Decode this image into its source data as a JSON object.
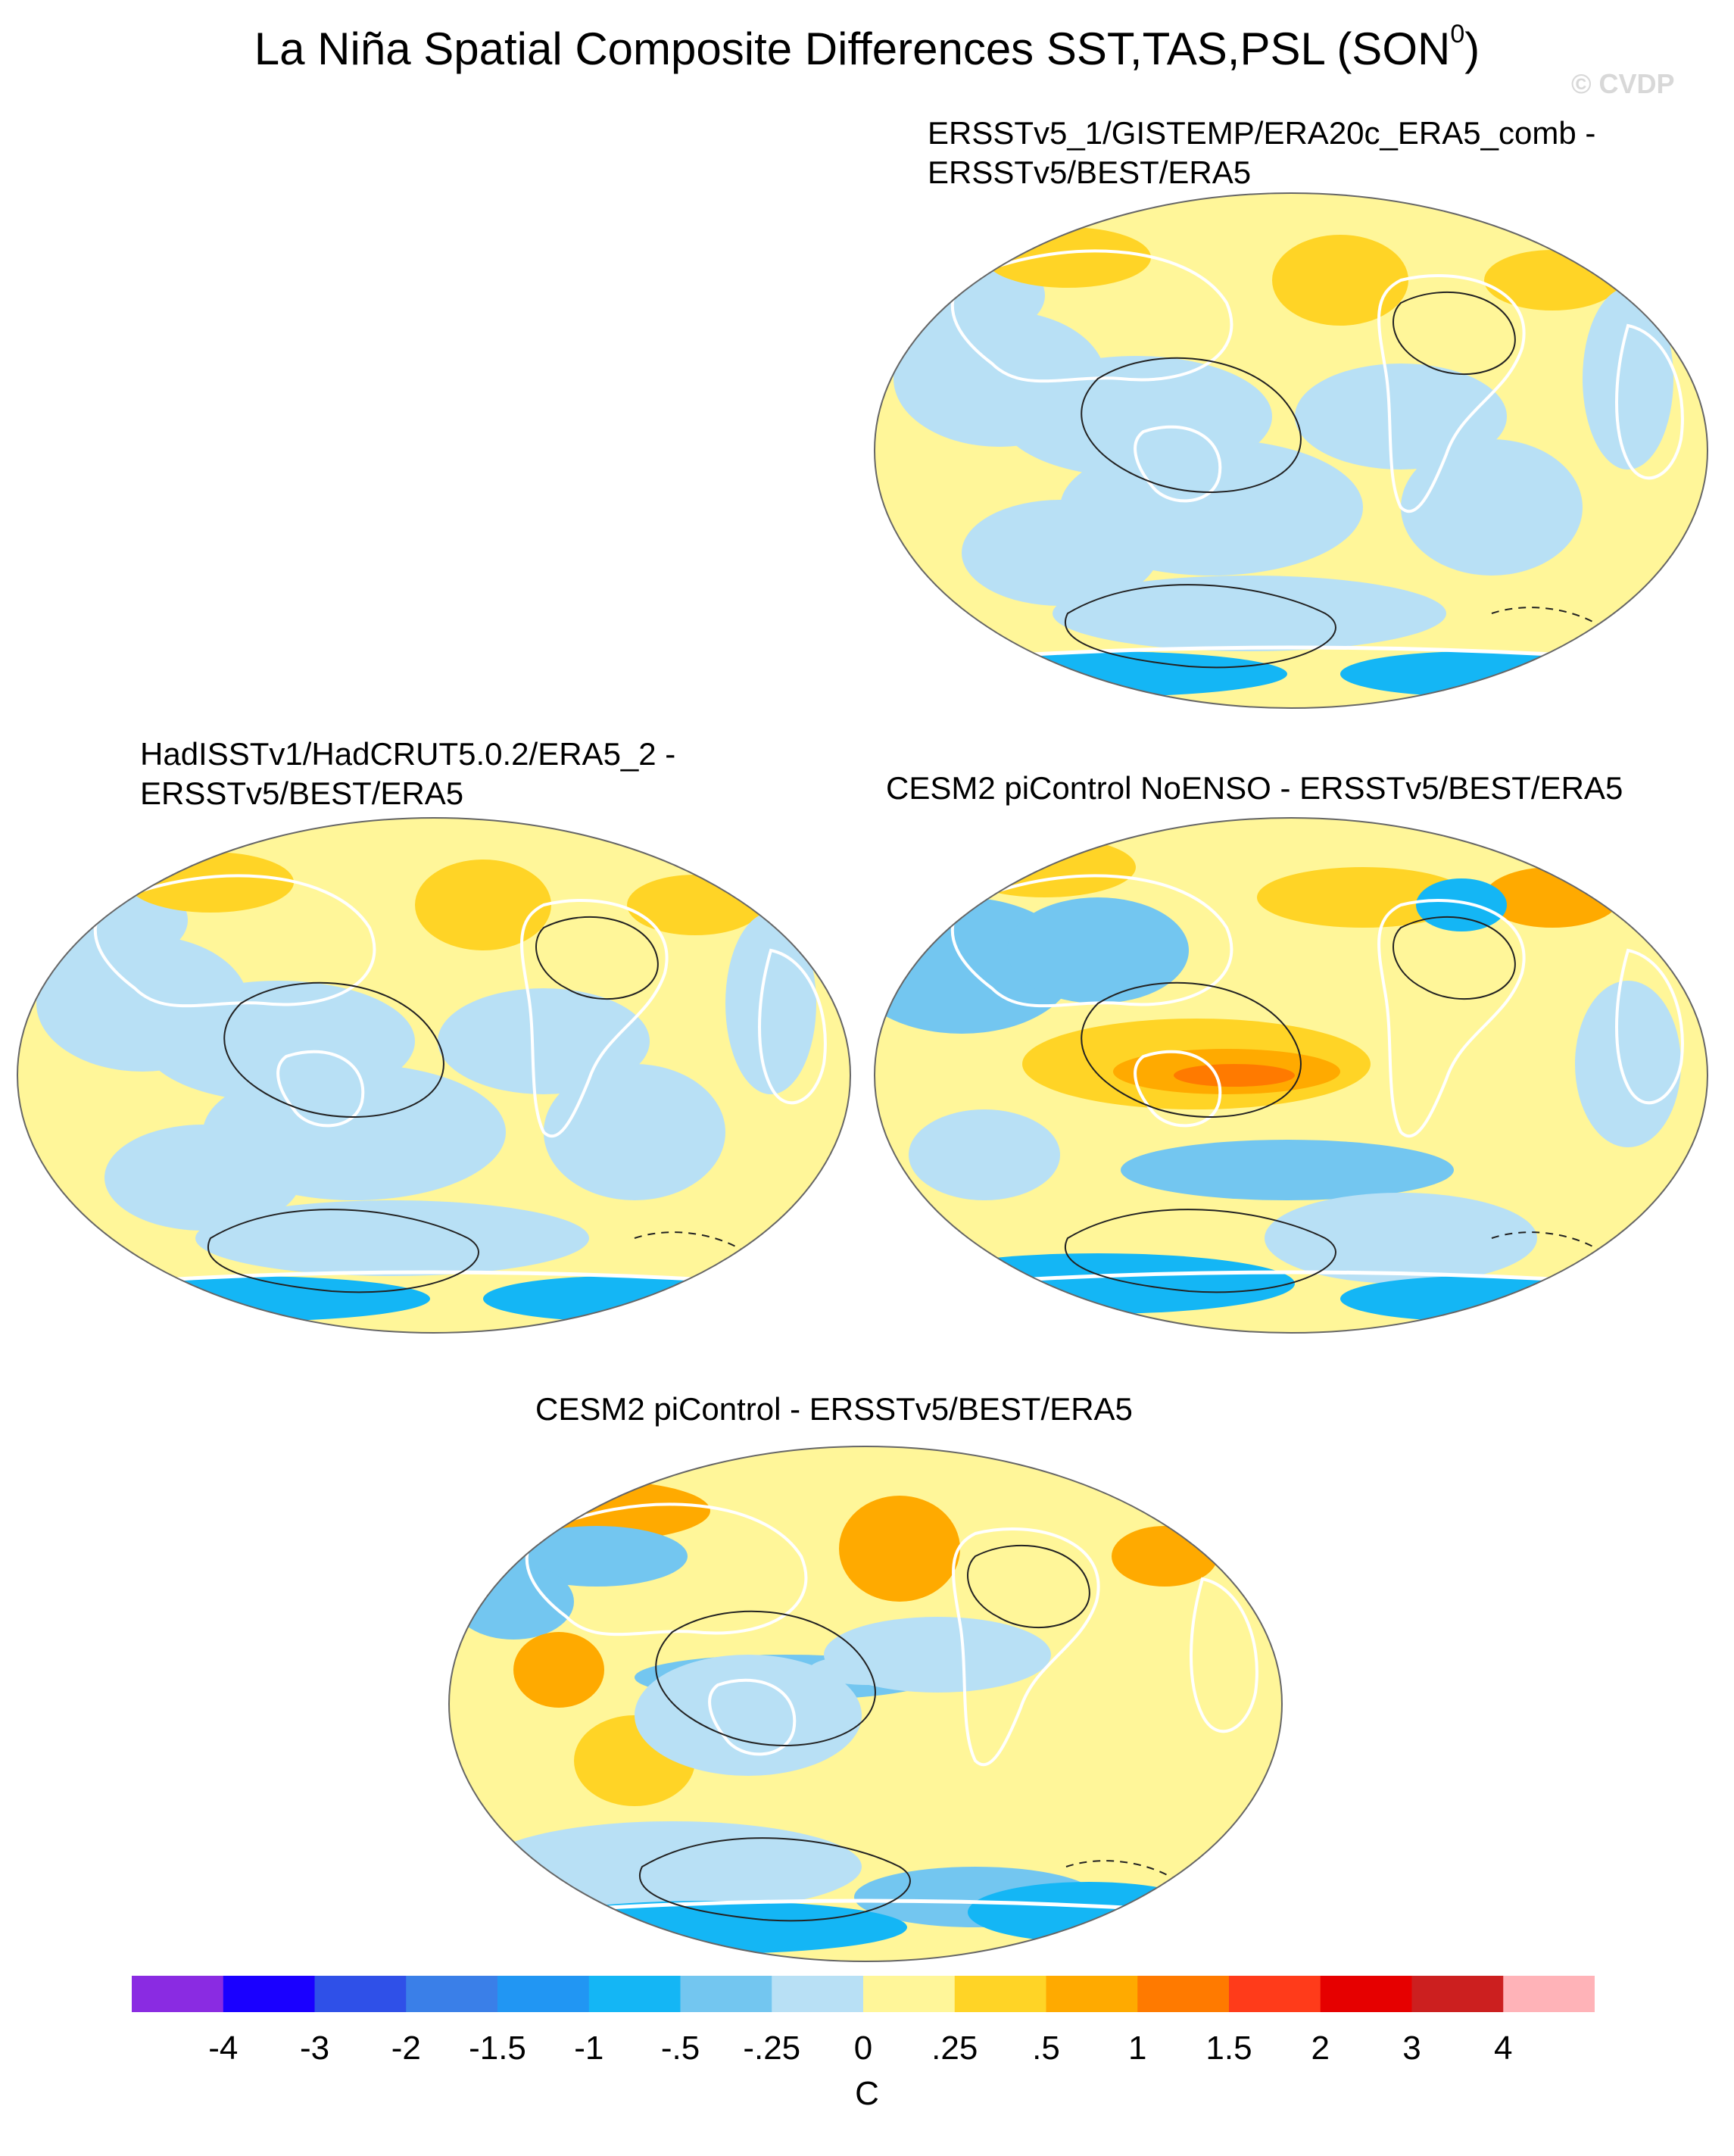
{
  "title": {
    "main": "La Niña Spatial Composite Differences SST,TAS,PSL (SON",
    "superscript": "0",
    "close": ")"
  },
  "watermark": "© CVDP",
  "panels": [
    {
      "id": "panel-1",
      "line1": "ERSSTv5_1/GISTEMP/ERA20c_ERA5_comb -",
      "line2": "ERSSTv5/BEST/ERA5",
      "pattern": "weak"
    },
    {
      "id": "panel-2",
      "line1": "HadISSTv1/HadCRUT5.0.2/ERA5_2 -",
      "line2": "ERSSTv5/BEST/ERA5",
      "pattern": "weak"
    },
    {
      "id": "panel-3",
      "line1": "CESM2 piControl NoENSO - ERSSTv5/BEST/ERA5",
      "line2": "",
      "pattern": "warm-equator"
    },
    {
      "id": "panel-4",
      "line1": "CESM2 piControl - ERSSTv5/BEST/ERA5",
      "line2": "",
      "pattern": "mixed"
    }
  ],
  "colorbar": {
    "unit": "C",
    "colors": [
      "#8a2be2",
      "#1a00ff",
      "#2f50e8",
      "#3a7fe8",
      "#2196f3",
      "#14b6f5",
      "#73c6f0",
      "#b8e0f5",
      "#fff699",
      "#ffd426",
      "#ffaa00",
      "#ff7a00",
      "#ff3b1a",
      "#e60000",
      "#cc1f1f",
      "#ffb3b8"
    ],
    "labels": [
      "-4",
      "-3",
      "-2",
      "-1.5",
      "-1",
      "-.5",
      "-.25",
      "0",
      ".25",
      ".5",
      "1",
      "1.5",
      "2",
      "3",
      "4"
    ]
  }
}
